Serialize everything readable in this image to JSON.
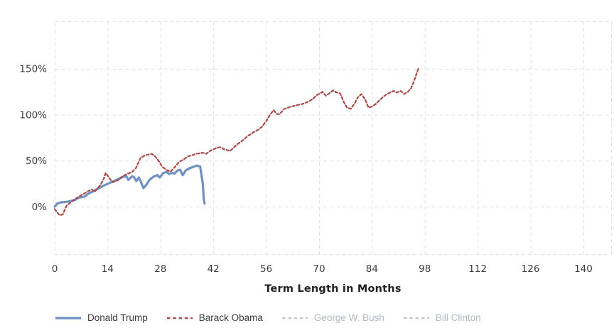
{
  "chart_data": {
    "type": "line",
    "title": "",
    "xlabel": "Term Length in Months",
    "ylabel": "",
    "x_ticks": [
      0,
      14,
      28,
      42,
      56,
      70,
      84,
      98,
      112,
      126,
      140
    ],
    "y_ticks": [
      {
        "value": 0,
        "label": "0%"
      },
      {
        "value": 50,
        "label": "50%"
      },
      {
        "value": 100,
        "label": "100%"
      },
      {
        "value": 150,
        "label": "150%"
      }
    ],
    "xlim": [
      0,
      147
    ],
    "ylim": [
      -52,
      202
    ],
    "grid": "dashed",
    "legend_position": "bottom-left",
    "colors": {
      "grid": "#e1e1e1",
      "tick_text": "#3d3d3d",
      "axis_title": "#222222",
      "background": "#ffffff"
    },
    "series": [
      {
        "name": "Donald Trump",
        "color": "#6e91c2",
        "label_color": "#3a3a3a",
        "width": 3.2,
        "dash": null,
        "visible": true,
        "points": [
          [
            0,
            0
          ],
          [
            0.7,
            3.3
          ],
          [
            1.6,
            4.6
          ],
          [
            3,
            5.2
          ],
          [
            4,
            5.9
          ],
          [
            5.4,
            7.2
          ],
          [
            6.3,
            9.8
          ],
          [
            7.3,
            10.3
          ],
          [
            8,
            11.1
          ],
          [
            9,
            14.4
          ],
          [
            10,
            16.2
          ],
          [
            10.7,
            18
          ],
          [
            11.7,
            20.1
          ],
          [
            12.6,
            22.2
          ],
          [
            13.6,
            24
          ],
          [
            14.5,
            25.7
          ],
          [
            15.4,
            27.3
          ],
          [
            16.4,
            29.1
          ],
          [
            17.3,
            30.9
          ],
          [
            18.3,
            32.4
          ],
          [
            18.9,
            33.5
          ],
          [
            19.5,
            29.1
          ],
          [
            20.5,
            33
          ],
          [
            21,
            32
          ],
          [
            21.6,
            27.8
          ],
          [
            22.3,
            31.7
          ],
          [
            23.5,
            20.1
          ],
          [
            24.3,
            24
          ],
          [
            25.1,
            29.1
          ],
          [
            26.3,
            33
          ],
          [
            27.2,
            34.2
          ],
          [
            27.8,
            31.7
          ],
          [
            28.8,
            36.8
          ],
          [
            29.6,
            37.6
          ],
          [
            30.3,
            35.5
          ],
          [
            31,
            36.8
          ],
          [
            31.7,
            36
          ],
          [
            32.6,
            39.4
          ],
          [
            33.2,
            40.2
          ],
          [
            33.9,
            34.2
          ],
          [
            34.7,
            39.4
          ],
          [
            35.8,
            42
          ],
          [
            36.7,
            43.3
          ],
          [
            37.6,
            44.6
          ],
          [
            38.5,
            43.8
          ],
          [
            39.2,
            25.3
          ],
          [
            39.5,
            7.2
          ],
          [
            39.7,
            3.3
          ]
        ]
      },
      {
        "name": "Barack Obama",
        "color": "#a84a47",
        "label_color": "#3a3a3a",
        "width": 2.2,
        "dash": "3.5 3",
        "visible": true,
        "points": [
          [
            0,
            -2.6
          ],
          [
            1,
            -8.2
          ],
          [
            1.5,
            -9.5
          ],
          [
            2.2,
            -8
          ],
          [
            3.1,
            0.8
          ],
          [
            4,
            4
          ],
          [
            5,
            7.2
          ],
          [
            6.5,
            11.1
          ],
          [
            8.1,
            14.9
          ],
          [
            9.7,
            18.8
          ],
          [
            10.6,
            16.2
          ],
          [
            12.2,
            24
          ],
          [
            13,
            30.5
          ],
          [
            13.5,
            36.8
          ],
          [
            14.8,
            29.1
          ],
          [
            15.4,
            26.5
          ],
          [
            16.9,
            29.1
          ],
          [
            17.9,
            33
          ],
          [
            19.1,
            35.5
          ],
          [
            20.4,
            37.5
          ],
          [
            21.5,
            42
          ],
          [
            22.8,
            53.6
          ],
          [
            24.2,
            56.2
          ],
          [
            25.7,
            57.4
          ],
          [
            26.5,
            55
          ],
          [
            27.5,
            50
          ],
          [
            28.5,
            43.3
          ],
          [
            29.8,
            39.4
          ],
          [
            30.7,
            38.1
          ],
          [
            31.8,
            43
          ],
          [
            32.9,
            48.5
          ],
          [
            34,
            51
          ],
          [
            35.4,
            54.9
          ],
          [
            36.5,
            56
          ],
          [
            37.3,
            57.4
          ],
          [
            38.3,
            58
          ],
          [
            39.2,
            58.7
          ],
          [
            40.1,
            57.4
          ],
          [
            41.4,
            61.3
          ],
          [
            42.9,
            63.9
          ],
          [
            43.9,
            64.7
          ],
          [
            44.8,
            62.6
          ],
          [
            45.8,
            61.3
          ],
          [
            46.4,
            60.5
          ],
          [
            47.3,
            63.9
          ],
          [
            48.3,
            67.8
          ],
          [
            49.2,
            70.3
          ],
          [
            50.2,
            73.4
          ],
          [
            51.1,
            76.8
          ],
          [
            52.1,
            79.4
          ],
          [
            53,
            81.9
          ],
          [
            53.9,
            83.7
          ],
          [
            54.9,
            87.1
          ],
          [
            56.1,
            93.5
          ],
          [
            57,
            100
          ],
          [
            58,
            105.1
          ],
          [
            58.7,
            101
          ],
          [
            59.5,
            100.5
          ],
          [
            60.8,
            106.4
          ],
          [
            62.7,
            109
          ],
          [
            64,
            110.3
          ],
          [
            65.5,
            111.6
          ],
          [
            67,
            114
          ],
          [
            68.3,
            117
          ],
          [
            69.3,
            121
          ],
          [
            70.9,
            125
          ],
          [
            71.8,
            120.6
          ],
          [
            72.7,
            123.2
          ],
          [
            73.7,
            126.5
          ],
          [
            74.6,
            124.4
          ],
          [
            75.6,
            123.2
          ],
          [
            76.5,
            114.2
          ],
          [
            77.4,
            107.7
          ],
          [
            78.4,
            106.4
          ],
          [
            79.3,
            111.6
          ],
          [
            80.3,
            119
          ],
          [
            81.2,
            122.4
          ],
          [
            82.2,
            116.7
          ],
          [
            83.1,
            107.7
          ],
          [
            84,
            109
          ],
          [
            85,
            111.6
          ],
          [
            85.9,
            115.4
          ],
          [
            86.9,
            119.3
          ],
          [
            87.8,
            122
          ],
          [
            88.8,
            124
          ],
          [
            89.7,
            126
          ],
          [
            90.6,
            124
          ],
          [
            91.6,
            126
          ],
          [
            92.5,
            122.5
          ],
          [
            93.5,
            125
          ],
          [
            94.4,
            129
          ],
          [
            95,
            135
          ],
          [
            95.6,
            142
          ],
          [
            96,
            147
          ],
          [
            96.3,
            150
          ]
        ]
      },
      {
        "name": "George W. Bush",
        "color": "#c5c9cd",
        "label_color": "#b3b9c0",
        "width": 2.2,
        "dash": "3.5 3",
        "visible": false,
        "points": []
      },
      {
        "name": "Bill Clinton",
        "color": "#c5c9cd",
        "label_color": "#b3b9c0",
        "width": 2.2,
        "dash": "3.5 3",
        "visible": false,
        "points": []
      }
    ]
  }
}
